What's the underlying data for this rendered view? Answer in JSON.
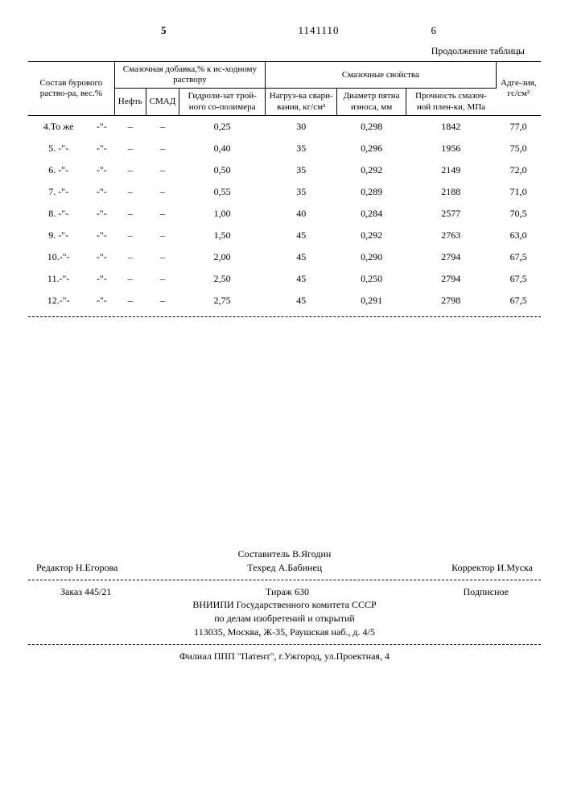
{
  "page_left_num": "5",
  "doc_number": "1141110",
  "page_right_num": "6",
  "continuation": "Продолжение таблицы",
  "headers": {
    "col1": "Состав бурового раство-ра, вес.%",
    "group1": "Смазочная добавка,% к ис-ходному раствору",
    "col2": "Нефть",
    "col3": "СМАД",
    "col4": "Гидроли-зат трой-ного со-полимера",
    "group2": "Смазочные свойства",
    "col5": "Нагруз-ка свари-вания, кг/см²",
    "col6": "Диаметр пятна износа, мм",
    "col7": "Прочность смазоч-ной плен-ки, МПа",
    "col8": "Адге-зия, гс/см²"
  },
  "rows": [
    {
      "n": "4.То же",
      "s": "-\"-",
      "neft": "–",
      "smad": "–",
      "hydr": "0,25",
      "load": "30",
      "diam": "0,298",
      "str": "1842",
      "adh": "77,0"
    },
    {
      "n": "5. -\"-",
      "s": "-\"-",
      "neft": "–",
      "smad": "–",
      "hydr": "0,40",
      "load": "35",
      "diam": "0,296",
      "str": "1956",
      "adh": "75,0"
    },
    {
      "n": "6. -\"-",
      "s": "-\"-",
      "neft": "–",
      "smad": "–",
      "hydr": "0,50",
      "load": "35",
      "diam": "0,292",
      "str": "2149",
      "adh": "72,0"
    },
    {
      "n": "7. -\"-",
      "s": "-\"-",
      "neft": "–",
      "smad": "–",
      "hydr": "0,55",
      "load": "35",
      "diam": "0,289",
      "str": "2188",
      "adh": "71,0"
    },
    {
      "n": "8. -\"-",
      "s": "-\"-",
      "neft": "–",
      "smad": "–",
      "hydr": "1,00",
      "load": "40",
      "diam": "0,284",
      "str": "2577",
      "adh": "70,5"
    },
    {
      "n": "9. -\"-",
      "s": "-\"-",
      "neft": "–",
      "smad": "–",
      "hydr": "1,50",
      "load": "45",
      "diam": "0,292",
      "str": "2763",
      "adh": "63,0"
    },
    {
      "n": "10.-\"-",
      "s": "-\"-",
      "neft": "–",
      "smad": "–",
      "hydr": "2,00",
      "load": "45",
      "diam": "0,290",
      "str": "2794",
      "adh": "67,5"
    },
    {
      "n": "11.-\"-",
      "s": "-\"-",
      "neft": "–",
      "smad": "–",
      "hydr": "2,50",
      "load": "45",
      "diam": "0,250",
      "str": "2794",
      "adh": "67,5"
    },
    {
      "n": "12.-\"-",
      "s": "-\"-",
      "neft": "–",
      "smad": "–",
      "hydr": "2,75",
      "load": "45",
      "diam": "0,291",
      "str": "2798",
      "adh": "67,5"
    }
  ],
  "colophon": {
    "compiler": "Составитель В.Ягодин",
    "editor": "Редактор Н.Егорова",
    "techred": "Техред А.Бабинец",
    "corrector": "Корректор И.Муска",
    "order": "Заказ 445/21",
    "tirage": "Тираж 630",
    "signed": "Подписное",
    "org1": "ВНИИПИ Государственного комитета СССР",
    "org2": "по делам изобретений и открытий",
    "addr1": "113035, Москва, Ж-35, Раушская наб., д. 4/5",
    "branch": "Филиал ППП \"Патент\", г.Ужгород, ул.Проектная, 4"
  }
}
